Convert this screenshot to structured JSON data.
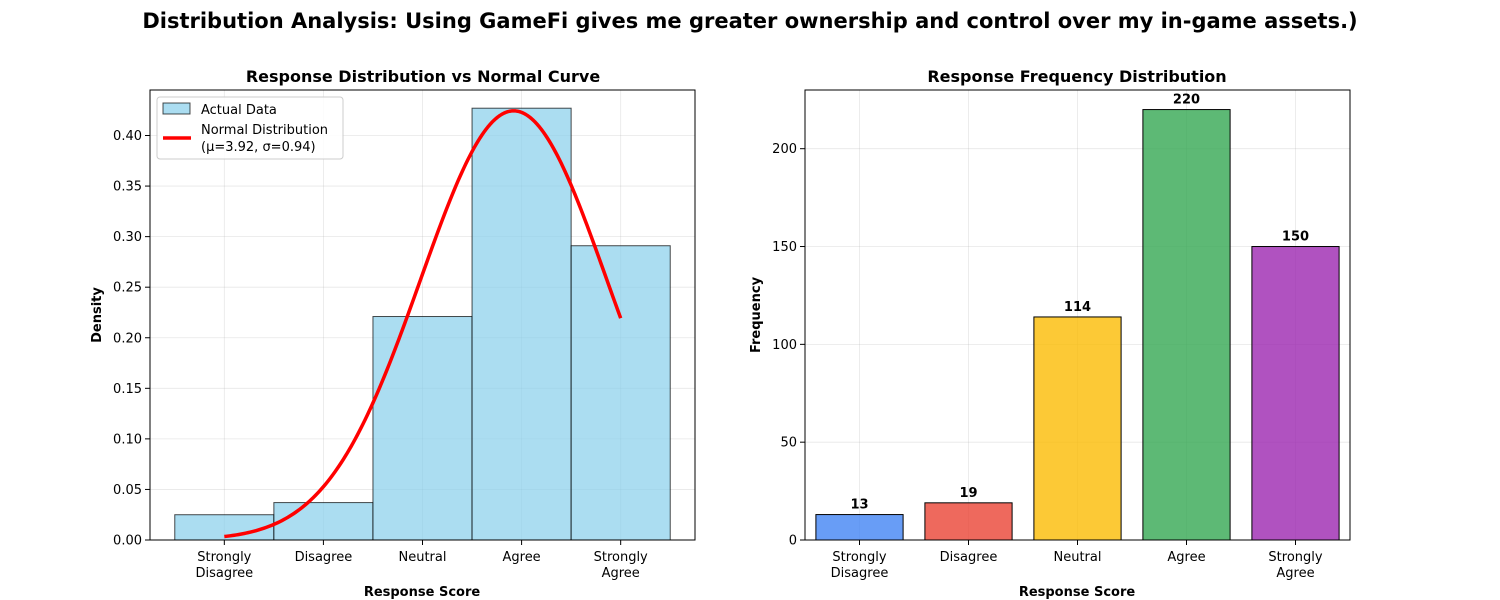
{
  "figure": {
    "suptitle": "Distribution Analysis: Using GameFi gives me greater ownership and control over my in-game assets.)"
  },
  "chart_data": [
    {
      "type": "bar",
      "subtype": "histogram-with-normal-curve",
      "title": "Response Distribution vs Normal Curve",
      "xlabel": "Response Score",
      "ylabel": "Density",
      "categories": [
        "Strongly\nDisagree",
        "Disagree",
        "Neutral",
        "Agree",
        "Strongly\nAgree"
      ],
      "x": [
        1,
        2,
        3,
        4,
        5
      ],
      "values": [
        0.025,
        0.037,
        0.221,
        0.427,
        0.291
      ],
      "ylim": [
        0,
        0.445
      ],
      "yticks": [
        0.0,
        0.05,
        0.1,
        0.15,
        0.2,
        0.25,
        0.3,
        0.35,
        0.4,
        0.45
      ],
      "ytick_labels": [
        "0.00",
        "0.05",
        "0.10",
        "0.15",
        "0.20",
        "0.25",
        "0.30",
        "0.35",
        "0.40"
      ],
      "grid": true,
      "legend": {
        "placement": "top-left",
        "entries": [
          "Actual Data",
          "Normal Distribution",
          "(μ=3.92, σ=0.94)"
        ]
      },
      "normal_curve": {
        "mu": 3.92,
        "sigma": 0.94,
        "x_range": [
          1,
          5
        ]
      },
      "colors": {
        "bar": "#87ceeb",
        "curve": "#ff0000"
      }
    },
    {
      "type": "bar",
      "title": "Response Frequency Distribution",
      "xlabel": "Response Score",
      "ylabel": "Frequency",
      "categories": [
        "Strongly\nDisagree",
        "Disagree",
        "Neutral",
        "Agree",
        "Strongly\nAgree"
      ],
      "values": [
        13,
        19,
        114,
        220,
        150
      ],
      "value_labels": [
        "13",
        "19",
        "114",
        "220",
        "150"
      ],
      "ylim": [
        0,
        230
      ],
      "yticks": [
        0,
        50,
        100,
        150,
        200
      ],
      "ytick_labels": [
        "0",
        "50",
        "100",
        "150",
        "200"
      ],
      "grid": true,
      "colors": [
        "#4285f4",
        "#ea4335",
        "#fbbc04",
        "#34a853",
        "#9c27b0"
      ]
    }
  ]
}
